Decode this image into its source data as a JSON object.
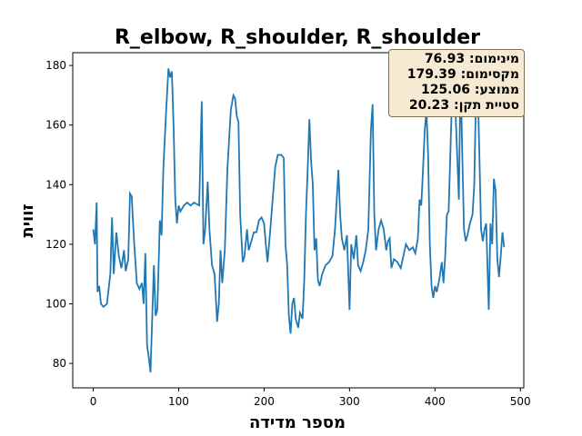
{
  "chart_data": {
    "type": "line",
    "title": "R_elbow, R_shoulder, R_shoulder",
    "x_label": "מספר מדידה",
    "y_label": "זווית",
    "annotations": [
      "מינימום: 76.93",
      "מקסימום: 179.39",
      "ממוצע: 125.06",
      "סטיית תקן: 20.23"
    ],
    "xlim": [
      -24,
      504
    ],
    "ylim": [
      71.8,
      184.3
    ],
    "xticks": [
      0,
      100,
      200,
      300,
      400,
      500
    ],
    "yticks": [
      80,
      100,
      120,
      140,
      160,
      180
    ],
    "grid": false,
    "series": [
      {
        "color": "#1f77b4",
        "x": [
          0,
          2,
          4,
          5,
          7,
          9,
          12,
          16,
          20,
          22,
          24,
          27,
          30,
          33,
          36,
          38,
          41,
          43,
          45,
          48,
          51,
          54,
          57,
          59,
          61,
          63,
          65,
          67,
          69,
          71,
          73,
          75,
          78,
          80,
          82,
          85,
          88,
          90,
          92,
          94,
          96,
          98,
          100,
          102,
          106,
          110,
          114,
          118,
          124,
          127,
          129,
          131,
          134,
          136,
          139,
          142,
          145,
          147,
          149,
          151,
          154,
          157,
          161,
          164,
          166,
          168,
          170,
          172,
          175,
          177,
          180,
          182,
          185,
          188,
          191,
          194,
          197,
          200,
          202,
          204,
          207,
          210,
          213,
          216,
          220,
          223,
          225,
          227,
          229,
          231,
          233,
          235,
          237,
          240,
          242,
          245,
          247,
          249,
          251,
          253,
          255,
          257,
          259,
          261,
          263,
          265,
          268,
          272,
          276,
          280,
          283,
          287,
          289,
          291,
          294,
          297,
          300,
          302,
          305,
          308,
          310,
          313,
          316,
          319,
          322,
          325,
          327,
          329,
          331,
          334,
          337,
          340,
          343,
          345,
          347,
          349,
          352,
          356,
          360,
          363,
          366,
          370,
          374,
          377,
          380,
          382,
          384,
          386,
          388,
          390,
          392,
          394,
          396,
          398,
          400,
          402,
          405,
          408,
          410,
          412,
          414,
          416,
          418,
          420,
          422,
          424,
          426,
          428,
          430,
          432,
          434,
          436,
          438,
          441,
          444,
          446,
          448,
          450,
          452,
          454,
          456,
          458,
          460,
          463,
          465,
          467,
          469,
          471,
          473,
          475,
          477,
          479,
          481
        ],
        "values": [
          125,
          120,
          134,
          104,
          106,
          100,
          99,
          100,
          110,
          129,
          110,
          124,
          116,
          112,
          118,
          111,
          115,
          137,
          136,
          120,
          107,
          105,
          107,
          100,
          117,
          86,
          82,
          77,
          95,
          113,
          96,
          98,
          128,
          123,
          145,
          163,
          179,
          176,
          178,
          160,
          135,
          127,
          133,
          131,
          133,
          134,
          133,
          134,
          133,
          168,
          120,
          125,
          141,
          125,
          113,
          110,
          94,
          100,
          118,
          107,
          118,
          145,
          165,
          170,
          169,
          163,
          161,
          130,
          114,
          116,
          125,
          118,
          121,
          124,
          124,
          128,
          129,
          127,
          120,
          114,
          124,
          135,
          146,
          150,
          150,
          149,
          120,
          113,
          96,
          90,
          100,
          102,
          95,
          92,
          97,
          95,
          108,
          130,
          145,
          162,
          148,
          140,
          118,
          122,
          108,
          106,
          110,
          113,
          114,
          116,
          125,
          145,
          130,
          122,
          118,
          123,
          98,
          120,
          115,
          123,
          113,
          111,
          114,
          118,
          125,
          158,
          167,
          130,
          118,
          125,
          128,
          125,
          118,
          121,
          122,
          112,
          115,
          114,
          112,
          116,
          120,
          118,
          119,
          117,
          122,
          135,
          133,
          145,
          158,
          165,
          150,
          120,
          106,
          102,
          106,
          104,
          108,
          114,
          107,
          116,
          130,
          131,
          150,
          170,
          175,
          165,
          150,
          135,
          178,
          150,
          125,
          121,
          123,
          127,
          130,
          140,
          170,
          174,
          150,
          125,
          121,
          125,
          127,
          98,
          127,
          120,
          142,
          138,
          115,
          109,
          116,
          124,
          119
        ]
      }
    ]
  }
}
